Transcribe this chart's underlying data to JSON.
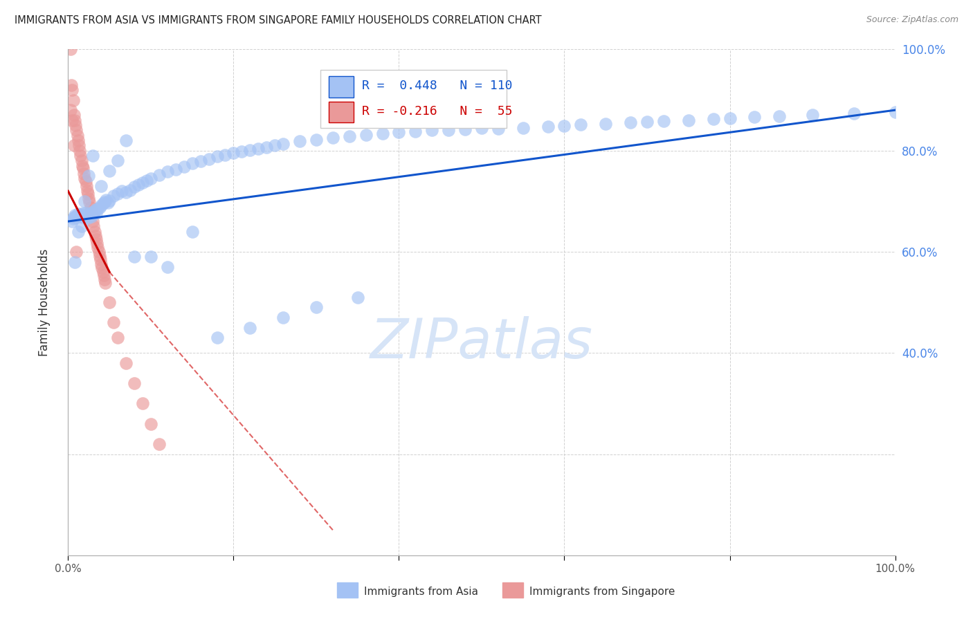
{
  "title": "IMMIGRANTS FROM ASIA VS IMMIGRANTS FROM SINGAPORE FAMILY HOUSEHOLDS CORRELATION CHART",
  "source": "Source: ZipAtlas.com",
  "ylabel": "Family Households",
  "legend_asia_R": "0.448",
  "legend_asia_N": "110",
  "legend_sing_R": "-0.216",
  "legend_sing_N": "55",
  "color_asia": "#a4c2f4",
  "color_sing": "#ea9999",
  "color_asia_line": "#1155cc",
  "color_sing_line": "#cc0000",
  "color_sing_dashed": "#e06666",
  "background_color": "#ffffff",
  "grid_color": "#cccccc",
  "right_axis_color": "#4a86e8",
  "watermark_color": "#d6e4f7",
  "asia_x": [
    0.005,
    0.006,
    0.007,
    0.008,
    0.009,
    0.01,
    0.011,
    0.012,
    0.013,
    0.014,
    0.015,
    0.016,
    0.017,
    0.018,
    0.019,
    0.02,
    0.021,
    0.022,
    0.023,
    0.024,
    0.025,
    0.026,
    0.027,
    0.028,
    0.03,
    0.032,
    0.033,
    0.034,
    0.036,
    0.038,
    0.04,
    0.042,
    0.044,
    0.046,
    0.048,
    0.05,
    0.055,
    0.06,
    0.065,
    0.07,
    0.075,
    0.08,
    0.085,
    0.09,
    0.095,
    0.1,
    0.11,
    0.12,
    0.13,
    0.14,
    0.15,
    0.16,
    0.17,
    0.18,
    0.19,
    0.2,
    0.21,
    0.22,
    0.23,
    0.24,
    0.25,
    0.26,
    0.28,
    0.3,
    0.32,
    0.34,
    0.36,
    0.38,
    0.4,
    0.42,
    0.44,
    0.46,
    0.48,
    0.5,
    0.52,
    0.55,
    0.58,
    0.6,
    0.62,
    0.65,
    0.68,
    0.7,
    0.72,
    0.75,
    0.78,
    0.8,
    0.83,
    0.86,
    0.9,
    0.95,
    1.0,
    0.008,
    0.012,
    0.016,
    0.02,
    0.025,
    0.03,
    0.04,
    0.05,
    0.06,
    0.07,
    0.08,
    0.1,
    0.12,
    0.15,
    0.18,
    0.22,
    0.26,
    0.3,
    0.35
  ],
  "asia_y": [
    0.66,
    0.665,
    0.668,
    0.672,
    0.67,
    0.668,
    0.671,
    0.675,
    0.669,
    0.673,
    0.671,
    0.674,
    0.668,
    0.677,
    0.669,
    0.672,
    0.676,
    0.67,
    0.673,
    0.667,
    0.671,
    0.675,
    0.678,
    0.669,
    0.674,
    0.68,
    0.683,
    0.677,
    0.685,
    0.688,
    0.691,
    0.695,
    0.699,
    0.703,
    0.697,
    0.701,
    0.71,
    0.715,
    0.72,
    0.718,
    0.722,
    0.728,
    0.733,
    0.737,
    0.741,
    0.745,
    0.752,
    0.758,
    0.763,
    0.768,
    0.775,
    0.779,
    0.783,
    0.788,
    0.791,
    0.795,
    0.798,
    0.801,
    0.804,
    0.807,
    0.81,
    0.813,
    0.818,
    0.822,
    0.825,
    0.828,
    0.831,
    0.834,
    0.836,
    0.838,
    0.84,
    0.841,
    0.842,
    0.844,
    0.843,
    0.845,
    0.847,
    0.849,
    0.851,
    0.853,
    0.855,
    0.857,
    0.858,
    0.86,
    0.862,
    0.864,
    0.866,
    0.868,
    0.87,
    0.873,
    0.876,
    0.58,
    0.64,
    0.65,
    0.7,
    0.75,
    0.79,
    0.73,
    0.76,
    0.78,
    0.82,
    0.59,
    0.59,
    0.57,
    0.64,
    0.43,
    0.45,
    0.47,
    0.49,
    0.51
  ],
  "sing_x": [
    0.003,
    0.004,
    0.005,
    0.006,
    0.007,
    0.008,
    0.009,
    0.01,
    0.011,
    0.012,
    0.013,
    0.014,
    0.015,
    0.016,
    0.017,
    0.018,
    0.019,
    0.02,
    0.021,
    0.022,
    0.023,
    0.024,
    0.025,
    0.026,
    0.027,
    0.028,
    0.029,
    0.03,
    0.031,
    0.032,
    0.033,
    0.034,
    0.035,
    0.036,
    0.037,
    0.038,
    0.039,
    0.04,
    0.041,
    0.042,
    0.043,
    0.044,
    0.045,
    0.05,
    0.055,
    0.06,
    0.07,
    0.08,
    0.09,
    0.1,
    0.11,
    0.003,
    0.005,
    0.007,
    0.01
  ],
  "sing_y": [
    1.0,
    0.93,
    0.92,
    0.9,
    0.87,
    0.86,
    0.85,
    0.84,
    0.83,
    0.82,
    0.81,
    0.8,
    0.79,
    0.78,
    0.77,
    0.765,
    0.755,
    0.745,
    0.74,
    0.73,
    0.72,
    0.715,
    0.705,
    0.698,
    0.688,
    0.68,
    0.672,
    0.66,
    0.65,
    0.64,
    0.632,
    0.625,
    0.616,
    0.608,
    0.6,
    0.592,
    0.585,
    0.575,
    0.568,
    0.56,
    0.553,
    0.545,
    0.538,
    0.5,
    0.46,
    0.43,
    0.38,
    0.34,
    0.3,
    0.26,
    0.22,
    0.88,
    0.86,
    0.81,
    0.6
  ],
  "asia_trend": [
    0.0,
    1.0,
    0.66,
    0.88
  ],
  "sing_trend_solid": [
    0.0,
    0.05,
    0.72,
    0.56
  ],
  "sing_trend_dashed": [
    0.05,
    0.32,
    0.56,
    0.05
  ],
  "xlim": [
    0.0,
    1.0
  ],
  "ylim": [
    0.0,
    1.0
  ],
  "x_ticks": [
    0.0,
    0.2,
    0.4,
    0.6,
    0.8,
    1.0
  ],
  "y_ticks": [
    0.0,
    0.2,
    0.4,
    0.6,
    0.8,
    1.0
  ],
  "right_yticks": [
    0.4,
    0.6,
    0.8,
    1.0
  ],
  "right_ylabels": [
    "40.0%",
    "60.0%",
    "80.0%",
    "100.0%"
  ]
}
